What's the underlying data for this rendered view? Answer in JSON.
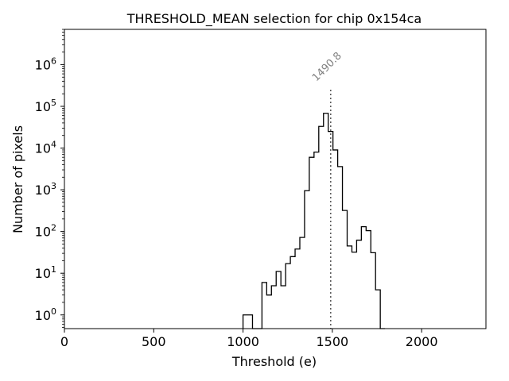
{
  "chart_data": {
    "type": "histogram",
    "title": "THRESHOLD_MEAN selection for chip 0x154ca",
    "xlabel": "Threshold (e)",
    "ylabel": "Number of pixels",
    "xlim": [
      0,
      2360
    ],
    "ylim": [
      0.47,
      7000000
    ],
    "yscale": "log",
    "x_ticks": [
      {
        "value": 0,
        "label": "0"
      },
      {
        "value": 500,
        "label": "500"
      },
      {
        "value": 1000,
        "label": "1000"
      },
      {
        "value": 1500,
        "label": "1500"
      },
      {
        "value": 2000,
        "label": "2000"
      }
    ],
    "y_ticks": [
      {
        "value": 1,
        "base": "10",
        "exp": "0"
      },
      {
        "value": 10,
        "base": "10",
        "exp": "1"
      },
      {
        "value": 100,
        "base": "10",
        "exp": "2"
      },
      {
        "value": 1000,
        "base": "10",
        "exp": "3"
      },
      {
        "value": 10000,
        "base": "10",
        "exp": "4"
      },
      {
        "value": 100000,
        "base": "10",
        "exp": "5"
      },
      {
        "value": 1000000,
        "base": "10",
        "exp": "6"
      }
    ],
    "bin_width": 26.5,
    "bins": [
      {
        "start": 1000,
        "count": 1
      },
      {
        "start": 1026.5,
        "count": 1
      },
      {
        "start": 1053,
        "count": 0
      },
      {
        "start": 1079.5,
        "count": 0
      },
      {
        "start": 1106,
        "count": 6
      },
      {
        "start": 1132.5,
        "count": 3
      },
      {
        "start": 1159,
        "count": 5
      },
      {
        "start": 1185.5,
        "count": 11
      },
      {
        "start": 1212,
        "count": 5
      },
      {
        "start": 1238.5,
        "count": 17
      },
      {
        "start": 1265,
        "count": 25
      },
      {
        "start": 1291.5,
        "count": 38
      },
      {
        "start": 1318,
        "count": 72
      },
      {
        "start": 1344.5,
        "count": 950
      },
      {
        "start": 1371,
        "count": 6000
      },
      {
        "start": 1397.5,
        "count": 8000
      },
      {
        "start": 1424,
        "count": 33000
      },
      {
        "start": 1450.5,
        "count": 68000
      },
      {
        "start": 1477,
        "count": 25000
      },
      {
        "start": 1503.5,
        "count": 9000
      },
      {
        "start": 1530,
        "count": 3600
      },
      {
        "start": 1556.5,
        "count": 320
      },
      {
        "start": 1583,
        "count": 45
      },
      {
        "start": 1609.5,
        "count": 32
      },
      {
        "start": 1636,
        "count": 62
      },
      {
        "start": 1662.5,
        "count": 130
      },
      {
        "start": 1689,
        "count": 105
      },
      {
        "start": 1715.5,
        "count": 31
      },
      {
        "start": 1742,
        "count": 4
      },
      {
        "start": 1768.5,
        "count": 0
      }
    ],
    "threshold_line": {
      "x": 1490.8,
      "label": "1490.8",
      "y_top": 250000
    }
  }
}
